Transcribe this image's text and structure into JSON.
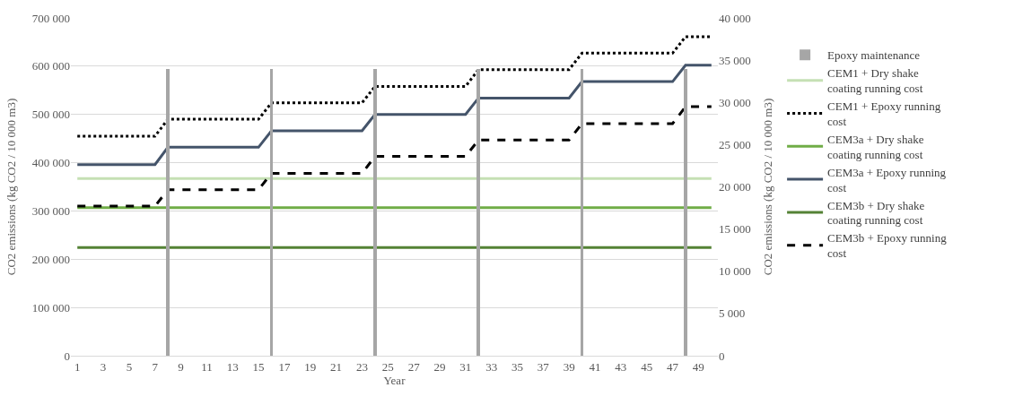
{
  "chart_data": {
    "type": "line",
    "xlabel": "Year",
    "ylabel": "CO2 emissions (kg CO2 / 10 000 m3)",
    "y2label": "CO2 emissions (kg CO2 / 10 000 m3)",
    "x": [
      1,
      2,
      3,
      4,
      5,
      6,
      7,
      8,
      9,
      10,
      11,
      12,
      13,
      14,
      15,
      16,
      17,
      18,
      19,
      20,
      21,
      22,
      23,
      24,
      25,
      26,
      27,
      28,
      29,
      30,
      31,
      32,
      33,
      34,
      35,
      36,
      37,
      38,
      39,
      40,
      41,
      42,
      43,
      44,
      45,
      46,
      47,
      48,
      49,
      50
    ],
    "xlim": [
      0.5,
      50.5
    ],
    "xticks": [
      1,
      3,
      5,
      7,
      9,
      11,
      13,
      15,
      17,
      19,
      21,
      23,
      25,
      27,
      29,
      31,
      33,
      35,
      37,
      39,
      41,
      43,
      45,
      47,
      49
    ],
    "ylim": [
      0,
      700000
    ],
    "yticks": [
      {
        "value": 0,
        "label": "0"
      },
      {
        "value": 100000,
        "label": "100 000"
      },
      {
        "value": 200000,
        "label": "200 000"
      },
      {
        "value": 300000,
        "label": "300 000"
      },
      {
        "value": 400000,
        "label": "400 000"
      },
      {
        "value": 500000,
        "label": "500 000"
      },
      {
        "value": 600000,
        "label": "600 000"
      },
      {
        "value": 700000,
        "label": "700 000"
      }
    ],
    "y2lim": [
      0,
      40000
    ],
    "y2ticks": [
      {
        "value": 0,
        "label": "0"
      },
      {
        "value": 5000,
        "label": "5 000"
      },
      {
        "value": 10000,
        "label": "10 000"
      },
      {
        "value": 15000,
        "label": "15 000"
      },
      {
        "value": 20000,
        "label": "20 000"
      },
      {
        "value": 25000,
        "label": "25 000"
      },
      {
        "value": 30000,
        "label": "30 000"
      },
      {
        "value": 35000,
        "label": "35 000"
      },
      {
        "value": 40000,
        "label": "40 000"
      }
    ],
    "grid": "y",
    "legend": "right",
    "marker": "none",
    "series": [
      {
        "name": "Epoxy maintenance",
        "type": "bar",
        "axis": "y2",
        "color": "#a6a6a6",
        "values": [
          null,
          null,
          null,
          null,
          null,
          null,
          null,
          34000,
          null,
          null,
          null,
          null,
          null,
          null,
          null,
          34000,
          null,
          null,
          null,
          null,
          null,
          null,
          null,
          34000,
          null,
          null,
          null,
          null,
          null,
          null,
          null,
          34000,
          null,
          null,
          null,
          null,
          null,
          null,
          null,
          34000,
          null,
          null,
          null,
          null,
          null,
          null,
          null,
          34000,
          null,
          null
        ]
      },
      {
        "name": "CEM1 + Dry shake coating running cost",
        "color": "#c5e0b4",
        "line_style": "solid",
        "values": [
          367000,
          367000,
          367000,
          367000,
          367000,
          367000,
          367000,
          367000,
          367000,
          367000,
          367000,
          367000,
          367000,
          367000,
          367000,
          367000,
          367000,
          367000,
          367000,
          367000,
          367000,
          367000,
          367000,
          367000,
          367000,
          367000,
          367000,
          367000,
          367000,
          367000,
          367000,
          367000,
          367000,
          367000,
          367000,
          367000,
          367000,
          367000,
          367000,
          367000,
          367000,
          367000,
          367000,
          367000,
          367000,
          367000,
          367000,
          367000,
          367000,
          367000
        ]
      },
      {
        "name": "CEM1 + Epoxy running cost",
        "color": "#000000",
        "line_style": "dotted",
        "values": [
          455000,
          455000,
          455000,
          455000,
          455000,
          455000,
          455000,
          490000,
          490000,
          490000,
          490000,
          490000,
          490000,
          490000,
          490000,
          524000,
          524000,
          524000,
          524000,
          524000,
          524000,
          524000,
          524000,
          558000,
          558000,
          558000,
          558000,
          558000,
          558000,
          558000,
          558000,
          593000,
          593000,
          593000,
          593000,
          593000,
          593000,
          593000,
          593000,
          627000,
          627000,
          627000,
          627000,
          627000,
          627000,
          627000,
          627000,
          661000,
          661000,
          661000
        ]
      },
      {
        "name": "CEM3a + Dry shake coating running cost",
        "color": "#70ad47",
        "line_style": "solid",
        "values": [
          307000,
          307000,
          307000,
          307000,
          307000,
          307000,
          307000,
          307000,
          307000,
          307000,
          307000,
          307000,
          307000,
          307000,
          307000,
          307000,
          307000,
          307000,
          307000,
          307000,
          307000,
          307000,
          307000,
          307000,
          307000,
          307000,
          307000,
          307000,
          307000,
          307000,
          307000,
          307000,
          307000,
          307000,
          307000,
          307000,
          307000,
          307000,
          307000,
          307000,
          307000,
          307000,
          307000,
          307000,
          307000,
          307000,
          307000,
          307000,
          307000,
          307000
        ]
      },
      {
        "name": "CEM3a + Epoxy running cost",
        "color": "#44546a",
        "line_style": "solid",
        "values": [
          396000,
          396000,
          396000,
          396000,
          396000,
          396000,
          396000,
          432000,
          432000,
          432000,
          432000,
          432000,
          432000,
          432000,
          432000,
          466000,
          466000,
          466000,
          466000,
          466000,
          466000,
          466000,
          466000,
          500000,
          500000,
          500000,
          500000,
          500000,
          500000,
          500000,
          500000,
          534000,
          534000,
          534000,
          534000,
          534000,
          534000,
          534000,
          534000,
          568000,
          568000,
          568000,
          568000,
          568000,
          568000,
          568000,
          568000,
          602000,
          602000,
          602000
        ]
      },
      {
        "name": "CEM3b + Dry shake coating running cost",
        "color": "#548235",
        "line_style": "solid",
        "values": [
          224000,
          224000,
          224000,
          224000,
          224000,
          224000,
          224000,
          224000,
          224000,
          224000,
          224000,
          224000,
          224000,
          224000,
          224000,
          224000,
          224000,
          224000,
          224000,
          224000,
          224000,
          224000,
          224000,
          224000,
          224000,
          224000,
          224000,
          224000,
          224000,
          224000,
          224000,
          224000,
          224000,
          224000,
          224000,
          224000,
          224000,
          224000,
          224000,
          224000,
          224000,
          224000,
          224000,
          224000,
          224000,
          224000,
          224000,
          224000,
          224000,
          224000
        ]
      },
      {
        "name": "CEM3b + Epoxy running cost",
        "color": "#000000",
        "line_style": "dashed",
        "values": [
          310000,
          310000,
          310000,
          310000,
          310000,
          310000,
          310000,
          344000,
          344000,
          344000,
          344000,
          344000,
          344000,
          344000,
          344000,
          378000,
          378000,
          378000,
          378000,
          378000,
          378000,
          378000,
          378000,
          413000,
          413000,
          413000,
          413000,
          413000,
          413000,
          413000,
          413000,
          447000,
          447000,
          447000,
          447000,
          447000,
          447000,
          447000,
          447000,
          481000,
          481000,
          481000,
          481000,
          481000,
          481000,
          481000,
          481000,
          516000,
          516000,
          516000
        ]
      }
    ]
  }
}
